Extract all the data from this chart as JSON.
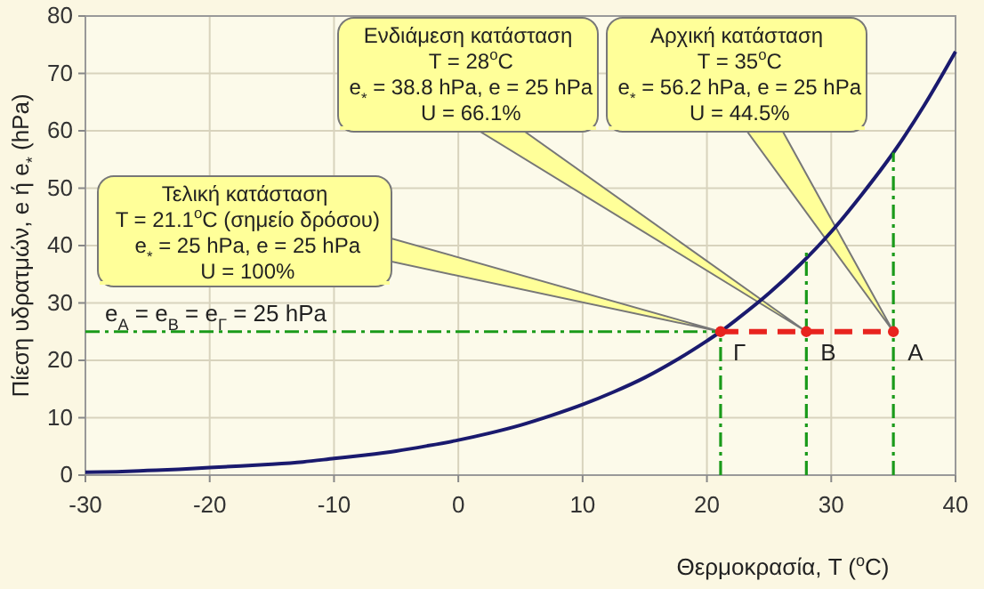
{
  "chart_data": {
    "type": "line",
    "xlabel": "Θερμοκρασία, T ($^{o}$C)",
    "ylabel": "Πίεση υδρατμών, e ή e$_{*}$ (hPa)",
    "xlim": [
      -30,
      40
    ],
    "ylim": [
      0,
      80
    ],
    "xticks": [
      -30,
      -20,
      -10,
      0,
      10,
      20,
      30,
      40
    ],
    "yticks": [
      0,
      10,
      20,
      30,
      40,
      50,
      60,
      70,
      80
    ],
    "grid": true,
    "series": [
      {
        "color": "#1a1a6e",
        "marker": "none",
        "line_style": "solid",
        "x": [
          -30,
          -27.5,
          -25,
          -22.5,
          -20,
          -17.5,
          -15,
          -12.5,
          -10,
          -7.5,
          -5,
          -2.5,
          0,
          2.5,
          5,
          7.5,
          10,
          12.5,
          15,
          17.5,
          20,
          21.1,
          22.5,
          25,
          27.5,
          30,
          32.5,
          35,
          37.5,
          40
        ],
        "values": [
          0.5,
          0.6,
          0.8,
          1.0,
          1.3,
          1.6,
          1.9,
          2.3,
          2.9,
          3.5,
          4.2,
          5.1,
          6.1,
          7.3,
          8.7,
          10.4,
          12.3,
          14.5,
          17.0,
          20.0,
          23.4,
          25.0,
          27.3,
          31.7,
          36.7,
          42.4,
          49.0,
          56.2,
          64.5,
          73.8
        ]
      },
      {
        "color": "#1a9a1a",
        "marker": "none",
        "line_style": "dashed",
        "x": [
          -30,
          21.1
        ],
        "values": [
          25,
          25
        ]
      },
      {
        "color": "#1a9a1a",
        "marker": "none",
        "line_style": "dashed",
        "x": [
          21.1,
          21.1
        ],
        "values": [
          0,
          25
        ]
      },
      {
        "color": "#1a9a1a",
        "marker": "none",
        "line_style": "dashed",
        "x": [
          28,
          28
        ],
        "values": [
          0,
          38.8
        ]
      },
      {
        "color": "#1a9a1a",
        "marker": "none",
        "line_style": "dashed",
        "x": [
          35,
          35
        ],
        "values": [
          0,
          56.2
        ]
      },
      {
        "color": "#e8231e",
        "marker": "circle",
        "line_style": "dashed",
        "x": [
          21.1,
          28,
          35
        ],
        "values": [
          25,
          25,
          25
        ]
      }
    ],
    "annotations": [
      {
        "text": "Αρχική κατάσταση\nT = 35$^{o}$C\ne$_{*}$ = 56.2 hPa, e = 25 hPa\nU = 44.5%"
      },
      {
        "text": "Ενδιάμεση κατάσταση\nT = 28$^{o}$C\ne$_{*}$ = 38.8 hPa, e = 25 hPa\nU = 66.1%"
      },
      {
        "text": "Τελική κατάσταση\nT = 21.1$^{o}$C (σημείο δρόσου)\ne$_{*}$ = 25 hPa, e = 25 hPa\nU = 100%"
      },
      {
        "text": "e$_{A}$ = e$_{B}$ = e$_{Γ}$ = 25 hPa",
        "x": -29,
        "y": 25
      },
      {
        "text": "Γ",
        "x": 21.1,
        "y": 25
      },
      {
        "text": "B",
        "x": 28,
        "y": 25
      },
      {
        "text": "A",
        "x": 35,
        "y": 25
      }
    ]
  }
}
